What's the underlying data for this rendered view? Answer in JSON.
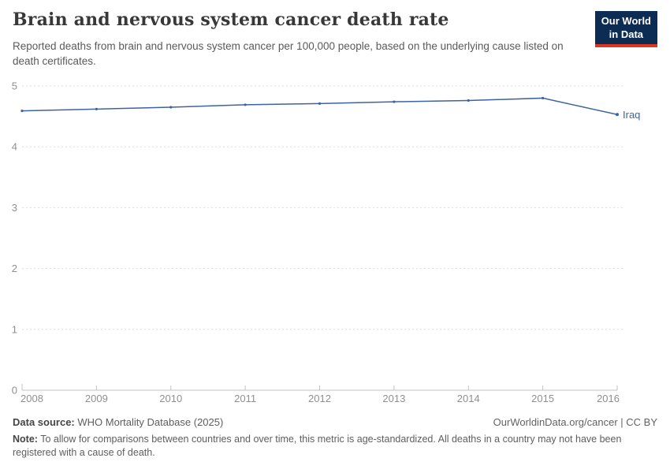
{
  "header": {
    "title": "Brain and nervous system cancer death rate",
    "subtitle": "Reported deaths from brain and nervous system cancer per 100,000 people, based on the underlying cause listed on death certificates.",
    "logo": {
      "line1": "Our World",
      "line2": "in Data"
    }
  },
  "chart_data": {
    "type": "line",
    "title": "Brain and nervous system cancer death rate",
    "xlabel": "",
    "ylabel": "",
    "xlim": [
      2008,
      2016
    ],
    "ylim": [
      0,
      5
    ],
    "x_ticks": [
      2008,
      2009,
      2010,
      2011,
      2012,
      2013,
      2014,
      2015,
      2016
    ],
    "y_ticks": [
      0,
      1,
      2,
      3,
      4,
      5
    ],
    "grid": "horizontal-dashed",
    "legend": "end-of-line-label",
    "series": [
      {
        "name": "Iraq",
        "color": "#3d649f",
        "x": [
          2008,
          2009,
          2010,
          2011,
          2012,
          2013,
          2014,
          2015,
          2016
        ],
        "values": [
          4.59,
          4.62,
          4.65,
          4.69,
          4.71,
          4.74,
          4.76,
          4.8,
          4.53
        ]
      }
    ]
  },
  "footer": {
    "data_source_label": "Data source:",
    "data_source_value": "WHO Mortality Database (2025)",
    "link": "OurWorldinData.org/cancer | CC BY",
    "note_label": "Note:",
    "note_text": "To allow for comparisons between countries and over time, this metric is age-standardized. All deaths in a country may not have been registered with a cause of death."
  },
  "colors": {
    "gridline": "#dedede",
    "axis": "#c2c2c2",
    "axis_text": "#8f8f8f",
    "line": "#3d649f",
    "logo_bg": "#0d2c54",
    "logo_accent": "#dd3524"
  }
}
